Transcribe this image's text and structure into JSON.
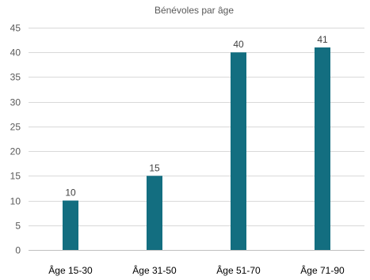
{
  "chart_data": {
    "type": "bar",
    "title": "Bénévoles par âge",
    "categories": [
      "Âge 15-30",
      "Âge 31-50",
      "Âge 51-70",
      "Âge 71-90"
    ],
    "values": [
      10,
      15,
      40,
      41
    ],
    "ylim": [
      0,
      45
    ],
    "yticks": [
      0,
      5,
      10,
      15,
      20,
      25,
      30,
      35,
      40,
      45
    ],
    "grid": true,
    "bar_color": "#136e80",
    "xlabel": "",
    "ylabel": ""
  }
}
